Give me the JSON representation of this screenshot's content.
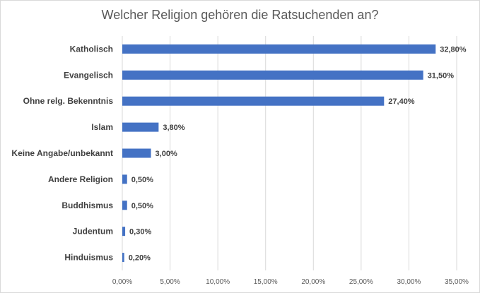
{
  "chart_data": {
    "type": "bar",
    "orientation": "horizontal",
    "title": "Welcher Religion gehören die Ratsuchenden an?",
    "categories": [
      "Katholisch",
      "Evangelisch",
      "Ohne relg. Bekenntnis",
      "Islam",
      "Keine Angabe/unbekannt",
      "Andere Religion",
      "Buddhismus",
      "Judentum",
      "Hinduismus"
    ],
    "values": [
      32.8,
      31.5,
      27.4,
      3.8,
      3.0,
      0.5,
      0.5,
      0.3,
      0.2
    ],
    "value_labels": [
      "32,80%",
      "31,50%",
      "27,40%",
      "3,80%",
      "3,00%",
      "0,50%",
      "0,50%",
      "0,30%",
      "0,20%"
    ],
    "x_ticks": [
      "0,00%",
      "5,00%",
      "10,00%",
      "15,00%",
      "20,00%",
      "25,00%",
      "30,00%",
      "35,00%"
    ],
    "xlim": [
      0,
      35
    ],
    "xlabel": "",
    "ylabel": "",
    "grid": "vertical",
    "bar_color": "#4472c4"
  }
}
